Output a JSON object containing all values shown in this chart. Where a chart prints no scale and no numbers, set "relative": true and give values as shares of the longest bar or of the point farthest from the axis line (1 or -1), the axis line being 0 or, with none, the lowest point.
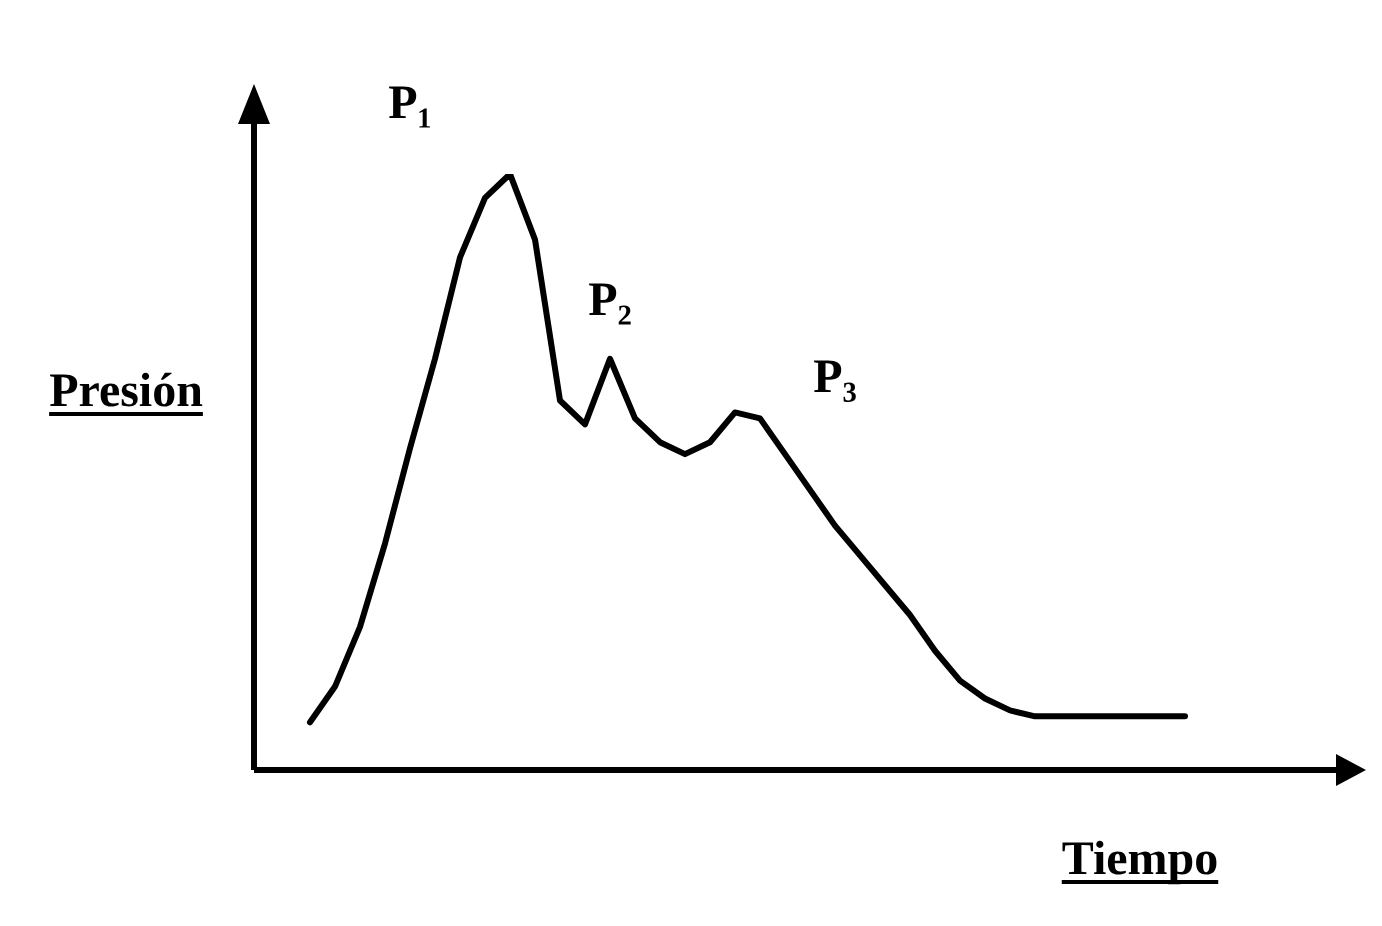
{
  "chart_data": {
    "type": "line",
    "xlabel": "Tiempo",
    "ylabel": "Presión",
    "relative": true,
    "color": "#000000",
    "categories": [
      null,
      null,
      null,
      null,
      null,
      null,
      null,
      null,
      null,
      null,
      null,
      null,
      null,
      null,
      null,
      null,
      null,
      null,
      null,
      null,
      null,
      null,
      null,
      null,
      null,
      null,
      null,
      null,
      null,
      null,
      null,
      null,
      null,
      null,
      null,
      null,
      null,
      null,
      null,
      null,
      null,
      null,
      null,
      null,
      null
    ],
    "values": [
      null,
      null,
      0.08,
      0.14,
      0.24,
      0.38,
      0.54,
      0.69,
      0.86,
      0.96,
      1,
      0.89,
      0.62,
      0.58,
      0.69,
      0.59,
      0.55,
      0.53,
      0.55,
      0.6,
      0.59,
      0.53,
      0.47,
      0.41,
      0.36,
      0.31,
      0.26,
      0.2,
      0.15,
      0.12,
      0.1,
      0.09,
      0.09,
      0.09,
      0.09,
      0.09,
      0.09,
      0.09,
      null,
      null,
      null,
      null,
      null,
      null,
      null
    ],
    "annotations": [
      "P₁",
      "P₂",
      "P₃"
    ]
  }
}
